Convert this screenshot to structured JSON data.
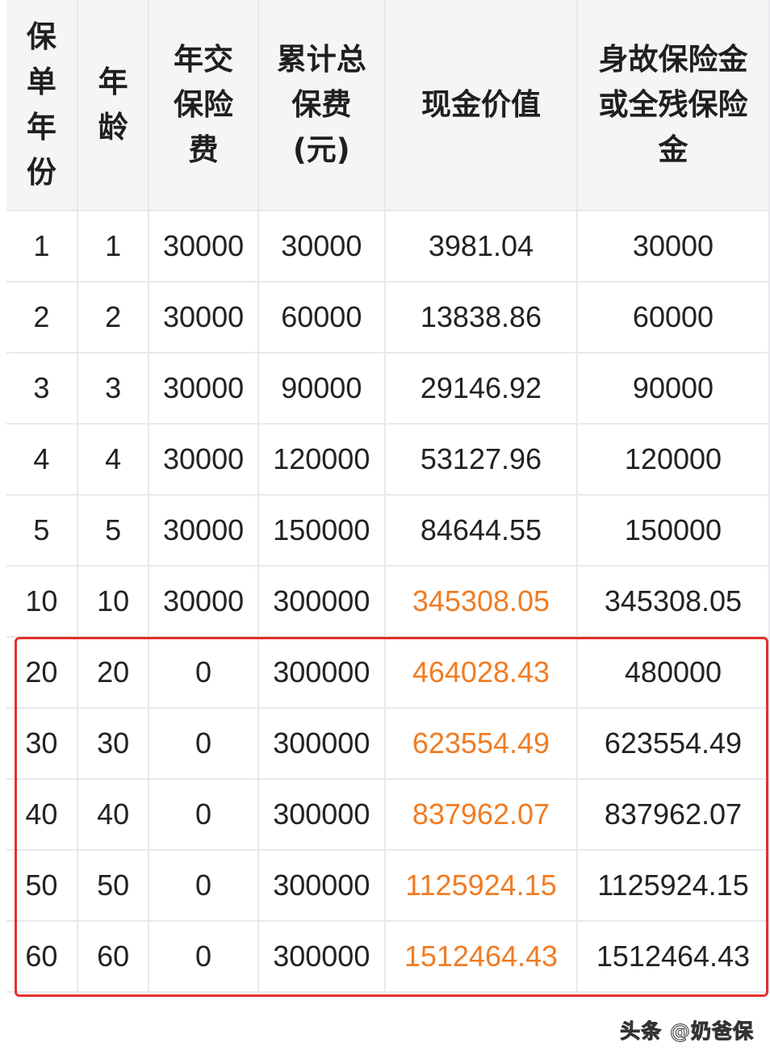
{
  "headers": [
    [
      "保",
      "单",
      "年",
      "份"
    ],
    [
      "年",
      "龄"
    ],
    [
      "年交",
      "保险",
      "费"
    ],
    [
      "累计总",
      "保费",
      "(元)"
    ],
    [
      "现金价值"
    ],
    [
      "身故保险金",
      "或全残保险",
      "金"
    ]
  ],
  "rows": [
    {
      "cells": [
        "1",
        "1",
        "30000",
        "30000",
        "3981.04",
        "30000"
      ],
      "highlight": false,
      "boxed": false
    },
    {
      "cells": [
        "2",
        "2",
        "30000",
        "60000",
        "13838.86",
        "60000"
      ],
      "highlight": false,
      "boxed": false
    },
    {
      "cells": [
        "3",
        "3",
        "30000",
        "90000",
        "29146.92",
        "90000"
      ],
      "highlight": false,
      "boxed": false
    },
    {
      "cells": [
        "4",
        "4",
        "30000",
        "120000",
        "53127.96",
        "120000"
      ],
      "highlight": false,
      "boxed": false
    },
    {
      "cells": [
        "5",
        "5",
        "30000",
        "150000",
        "84644.55",
        "150000"
      ],
      "highlight": false,
      "boxed": false
    },
    {
      "cells": [
        "10",
        "10",
        "30000",
        "300000",
        "345308.05",
        "345308.05"
      ],
      "highlight": true,
      "boxed": false
    },
    {
      "cells": [
        "20",
        "20",
        "0",
        "300000",
        "464028.43",
        "480000"
      ],
      "highlight": true,
      "boxed": true
    },
    {
      "cells": [
        "30",
        "30",
        "0",
        "300000",
        "623554.49",
        "623554.49"
      ],
      "highlight": true,
      "boxed": true
    },
    {
      "cells": [
        "40",
        "40",
        "0",
        "300000",
        "837962.07",
        "837962.07"
      ],
      "highlight": true,
      "boxed": true
    },
    {
      "cells": [
        "50",
        "50",
        "0",
        "300000",
        "1125924.15",
        "1125924.15"
      ],
      "highlight": true,
      "boxed": true
    },
    {
      "cells": [
        "60",
        "60",
        "0",
        "300000",
        "1512464.43",
        "1512464.43"
      ],
      "highlight": true,
      "boxed": true
    }
  ],
  "colors": {
    "highlight": "#f07c24",
    "box": "#e3302c",
    "header_bg": "#f4f5f6"
  },
  "watermark": "头条 @奶爸保"
}
